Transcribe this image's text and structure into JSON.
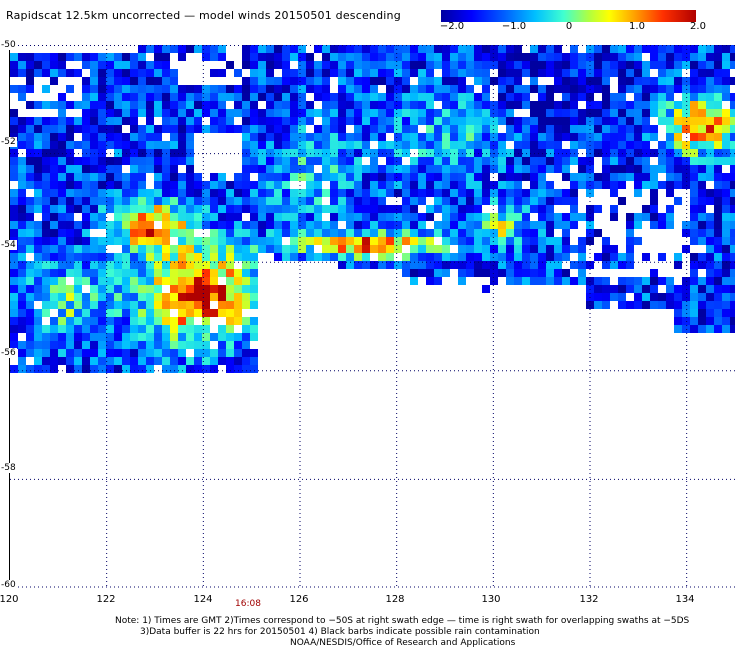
{
  "title": "Rapidscat 12.5km uncorrected — model winds 20150501 descending",
  "colorbar": {
    "min": -2.0,
    "max": 2.0,
    "ticks": [
      {
        "value": -2.0,
        "label": "−2.0"
      },
      {
        "value": -1.0,
        "label": "−1.0"
      },
      {
        "value": 0,
        "label": "0"
      },
      {
        "value": 1.0,
        "label": "1.0"
      },
      {
        "value": 2.0,
        "label": "2.0"
      }
    ]
  },
  "map": {
    "lon_range": [
      120,
      135
    ],
    "lat_range": [
      -60,
      -50
    ],
    "lon_labels": [
      "120",
      "122",
      "124",
      "126",
      "128",
      "130",
      "132",
      "134"
    ],
    "lat_labels": [
      "-50",
      "-52",
      "-54",
      "-56",
      "-58",
      "-60"
    ],
    "time_label": "16:08",
    "grid": "dotted"
  },
  "notes": {
    "line1": "Note: 1) Times are GMT 2)Times correspond to −50S at right swath edge — time is right swath for overlapping swaths at −5DS",
    "line2": "3)Data buffer is 22 hrs for 20150501 4) Black barbs indicate possible rain contamination",
    "line3": "NOAA/NESDIS/Office of Research and Applications"
  },
  "colors": {
    "lowest": "#0000a0",
    "zero": "#40ffd0",
    "highest": "#b00000"
  }
}
